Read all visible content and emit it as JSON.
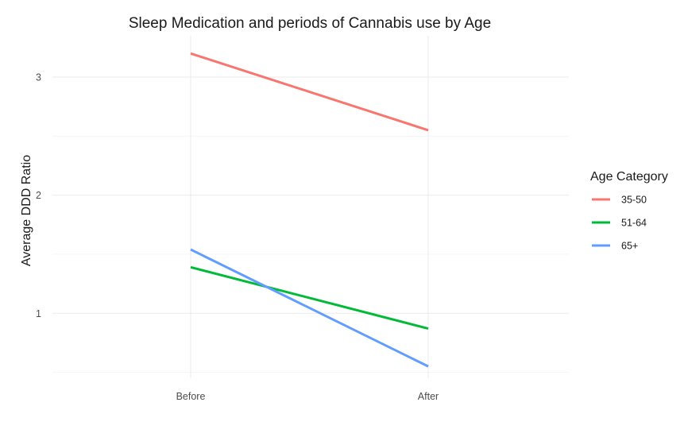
{
  "chart_data": {
    "type": "line",
    "title": "Sleep Medication and periods of Cannabis use by Age",
    "xlabel": "",
    "ylabel": "Average DDD Ratio",
    "categories": [
      "Before",
      "After"
    ],
    "yticks": [
      1,
      2,
      3
    ],
    "ylim": [
      0.45,
      3.35
    ],
    "grid": true,
    "legend": {
      "title": "Age Category",
      "position": "right"
    },
    "series": [
      {
        "name": "35-50",
        "color": "#F8766D",
        "values": [
          3.2,
          2.55
        ]
      },
      {
        "name": "51-64",
        "color": "#00BA38",
        "values": [
          1.39,
          0.87
        ]
      },
      {
        "name": "65+",
        "color": "#619CFF",
        "values": [
          1.54,
          0.55
        ]
      }
    ]
  }
}
